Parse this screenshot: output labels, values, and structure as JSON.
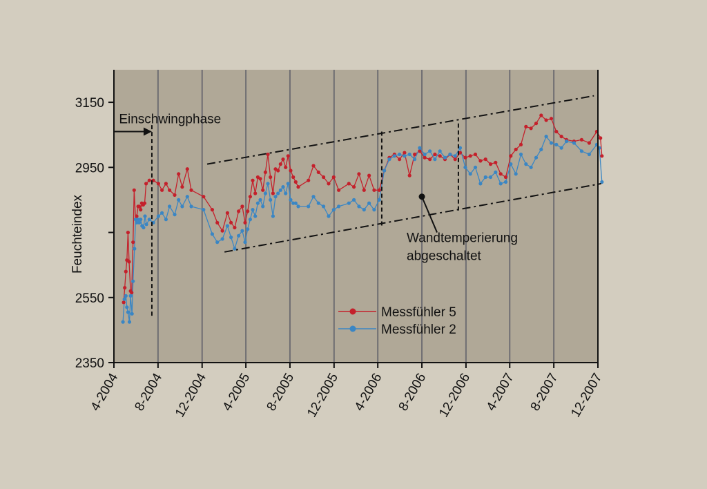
{
  "colors": {
    "background": "#d3cdbf",
    "plot_background": "#b0a897",
    "gridline": "#6f6e72",
    "series_red": "#c4202b",
    "series_blue": "#3a86c4"
  },
  "chart_data": {
    "type": "line",
    "title": "",
    "xlabel": "",
    "ylabel": "Feuchteindex",
    "x_type": "date",
    "xlim": [
      "2004-04-01",
      "2007-12-01"
    ],
    "ylim": [
      2350,
      3250
    ],
    "yticks": [
      2350,
      2550,
      2750,
      2950,
      3150
    ],
    "ytick_labels": [
      "2350",
      "2550",
      "",
      "2950",
      "3150"
    ],
    "xticks": [
      "2004-04-01",
      "2004-08-01",
      "2004-12-01",
      "2005-04-01",
      "2005-08-01",
      "2005-12-01",
      "2006-04-01",
      "2006-08-01",
      "2006-12-01",
      "2007-04-01",
      "2007-08-01",
      "2007-12-01"
    ],
    "xtick_labels": [
      "4-2004",
      "8-2004",
      "12-2004",
      "4-2005",
      "8-2005",
      "12-2005",
      "4-2006",
      "8-2006",
      "12-2006",
      "4-2007",
      "8-2007",
      "12-2007"
    ],
    "grid": "vertical",
    "legend_position": "bottom-center",
    "series": [
      {
        "name": "Messfühler 5",
        "color": "#c4202b",
        "points": [
          [
            "2004-04-28",
            2535
          ],
          [
            "2004-05-01",
            2580
          ],
          [
            "2004-05-04",
            2630
          ],
          [
            "2004-05-07",
            2665
          ],
          [
            "2004-05-10",
            2750
          ],
          [
            "2004-05-13",
            2660
          ],
          [
            "2004-05-17",
            2570
          ],
          [
            "2004-05-20",
            2565
          ],
          [
            "2004-05-24",
            2720
          ],
          [
            "2004-05-27",
            2880
          ],
          [
            "2004-05-31",
            2790
          ],
          [
            "2004-06-03",
            2800
          ],
          [
            "2004-06-07",
            2830
          ],
          [
            "2004-06-10",
            2830
          ],
          [
            "2004-06-14",
            2820
          ],
          [
            "2004-06-17",
            2840
          ],
          [
            "2004-06-21",
            2835
          ],
          [
            "2004-06-25",
            2840
          ],
          [
            "2004-06-29",
            2900
          ],
          [
            "2004-07-08",
            2910
          ],
          [
            "2004-07-19",
            2910
          ],
          [
            "2004-08-02",
            2900
          ],
          [
            "2004-08-12",
            2880
          ],
          [
            "2004-08-23",
            2900
          ],
          [
            "2004-09-02",
            2880
          ],
          [
            "2004-09-16",
            2865
          ],
          [
            "2004-09-27",
            2930
          ],
          [
            "2004-10-07",
            2890
          ],
          [
            "2004-10-21",
            2945
          ],
          [
            "2004-11-01",
            2880
          ],
          [
            "2004-12-05",
            2860
          ],
          [
            "2004-12-29",
            2820
          ],
          [
            "2005-01-12",
            2780
          ],
          [
            "2005-01-26",
            2755
          ],
          [
            "2005-02-09",
            2810
          ],
          [
            "2005-02-19",
            2780
          ],
          [
            "2005-03-01",
            2765
          ],
          [
            "2005-03-12",
            2815
          ],
          [
            "2005-03-22",
            2830
          ],
          [
            "2005-03-30",
            2780
          ],
          [
            "2005-04-06",
            2815
          ],
          [
            "2005-04-13",
            2860
          ],
          [
            "2005-04-20",
            2910
          ],
          [
            "2005-04-27",
            2870
          ],
          [
            "2005-05-04",
            2920
          ],
          [
            "2005-05-11",
            2915
          ],
          [
            "2005-05-18",
            2880
          ],
          [
            "2005-05-25",
            2935
          ],
          [
            "2005-06-01",
            2990
          ],
          [
            "2005-06-08",
            2920
          ],
          [
            "2005-06-15",
            2870
          ],
          [
            "2005-06-22",
            2945
          ],
          [
            "2005-06-29",
            2940
          ],
          [
            "2005-07-06",
            2960
          ],
          [
            "2005-07-13",
            2975
          ],
          [
            "2005-07-20",
            2950
          ],
          [
            "2005-07-27",
            2985
          ],
          [
            "2005-08-03",
            2940
          ],
          [
            "2005-08-10",
            2920
          ],
          [
            "2005-08-17",
            2905
          ],
          [
            "2005-08-24",
            2890
          ],
          [
            "2005-09-21",
            2910
          ],
          [
            "2005-10-05",
            2955
          ],
          [
            "2005-10-19",
            2935
          ],
          [
            "2005-11-02",
            2920
          ],
          [
            "2005-11-16",
            2900
          ],
          [
            "2005-11-30",
            2920
          ],
          [
            "2005-12-14",
            2880
          ],
          [
            "2006-01-11",
            2900
          ],
          [
            "2006-01-25",
            2890
          ],
          [
            "2006-02-08",
            2930
          ],
          [
            "2006-02-22",
            2880
          ],
          [
            "2006-03-08",
            2925
          ],
          [
            "2006-03-22",
            2880
          ],
          [
            "2006-04-05",
            2880
          ],
          [
            "2006-04-19",
            2940
          ],
          [
            "2006-05-03",
            2980
          ],
          [
            "2006-05-17",
            2990
          ],
          [
            "2006-05-31",
            2975
          ],
          [
            "2006-06-14",
            2995
          ],
          [
            "2006-06-28",
            2925
          ],
          [
            "2006-07-12",
            2990
          ],
          [
            "2006-07-26",
            3000
          ],
          [
            "2006-08-09",
            2980
          ],
          [
            "2006-08-23",
            2975
          ],
          [
            "2006-09-06",
            2990
          ],
          [
            "2006-09-20",
            2985
          ],
          [
            "2006-10-04",
            2975
          ],
          [
            "2006-10-18",
            2990
          ],
          [
            "2006-11-01",
            2975
          ],
          [
            "2006-11-15",
            2995
          ],
          [
            "2006-11-29",
            2980
          ],
          [
            "2006-12-13",
            2985
          ],
          [
            "2006-12-27",
            2990
          ],
          [
            "2007-01-10",
            2970
          ],
          [
            "2007-01-24",
            2975
          ],
          [
            "2007-02-07",
            2960
          ],
          [
            "2007-02-21",
            2965
          ],
          [
            "2007-03-07",
            2930
          ],
          [
            "2007-03-21",
            2920
          ],
          [
            "2007-04-04",
            2985
          ],
          [
            "2007-04-18",
            3005
          ],
          [
            "2007-05-02",
            3020
          ],
          [
            "2007-05-16",
            3075
          ],
          [
            "2007-05-30",
            3070
          ],
          [
            "2007-06-13",
            3085
          ],
          [
            "2007-06-27",
            3110
          ],
          [
            "2007-07-11",
            3095
          ],
          [
            "2007-07-25",
            3100
          ],
          [
            "2007-08-08",
            3060
          ],
          [
            "2007-08-22",
            3045
          ],
          [
            "2007-09-05",
            3035
          ],
          [
            "2007-09-26",
            3030
          ],
          [
            "2007-10-17",
            3035
          ],
          [
            "2007-11-07",
            3025
          ],
          [
            "2007-11-28",
            3060
          ],
          [
            "2007-12-08",
            3040
          ],
          [
            "2007-12-12",
            2985
          ]
        ]
      },
      {
        "name": "Messfühler 2",
        "color": "#3a86c4",
        "points": [
          [
            "2004-04-26",
            2475
          ],
          [
            "2004-04-30",
            2545
          ],
          [
            "2004-05-04",
            2555
          ],
          [
            "2004-05-07",
            2520
          ],
          [
            "2004-05-10",
            2505
          ],
          [
            "2004-05-14",
            2475
          ],
          [
            "2004-05-17",
            2555
          ],
          [
            "2004-05-21",
            2500
          ],
          [
            "2004-05-24",
            2600
          ],
          [
            "2004-05-28",
            2700
          ],
          [
            "2004-05-31",
            2790
          ],
          [
            "2004-06-03",
            2780
          ],
          [
            "2004-06-07",
            2790
          ],
          [
            "2004-06-10",
            2780
          ],
          [
            "2004-06-14",
            2790
          ],
          [
            "2004-06-18",
            2770
          ],
          [
            "2004-06-22",
            2765
          ],
          [
            "2004-06-26",
            2800
          ],
          [
            "2004-06-30",
            2775
          ],
          [
            "2004-07-08",
            2790
          ],
          [
            "2004-07-19",
            2780
          ],
          [
            "2004-08-02",
            2800
          ],
          [
            "2004-08-12",
            2810
          ],
          [
            "2004-08-23",
            2790
          ],
          [
            "2004-09-02",
            2830
          ],
          [
            "2004-09-16",
            2805
          ],
          [
            "2004-09-27",
            2850
          ],
          [
            "2004-10-07",
            2830
          ],
          [
            "2004-10-21",
            2860
          ],
          [
            "2004-11-01",
            2830
          ],
          [
            "2004-12-05",
            2820
          ],
          [
            "2004-12-29",
            2745
          ],
          [
            "2005-01-12",
            2720
          ],
          [
            "2005-01-26",
            2730
          ],
          [
            "2005-02-09",
            2770
          ],
          [
            "2005-02-19",
            2735
          ],
          [
            "2005-03-01",
            2700
          ],
          [
            "2005-03-12",
            2740
          ],
          [
            "2005-03-22",
            2755
          ],
          [
            "2005-03-30",
            2720
          ],
          [
            "2005-04-06",
            2760
          ],
          [
            "2005-04-13",
            2790
          ],
          [
            "2005-04-20",
            2820
          ],
          [
            "2005-04-27",
            2800
          ],
          [
            "2005-05-04",
            2840
          ],
          [
            "2005-05-11",
            2850
          ],
          [
            "2005-05-18",
            2830
          ],
          [
            "2005-05-25",
            2870
          ],
          [
            "2005-06-01",
            2900
          ],
          [
            "2005-06-08",
            2850
          ],
          [
            "2005-06-15",
            2800
          ],
          [
            "2005-06-22",
            2860
          ],
          [
            "2005-06-29",
            2870
          ],
          [
            "2005-07-06",
            2880
          ],
          [
            "2005-07-13",
            2890
          ],
          [
            "2005-07-20",
            2870
          ],
          [
            "2005-07-27",
            2900
          ],
          [
            "2005-08-03",
            2850
          ],
          [
            "2005-08-10",
            2840
          ],
          [
            "2005-08-17",
            2840
          ],
          [
            "2005-08-24",
            2830
          ],
          [
            "2005-09-21",
            2830
          ],
          [
            "2005-10-05",
            2860
          ],
          [
            "2005-10-19",
            2840
          ],
          [
            "2005-11-02",
            2830
          ],
          [
            "2005-11-16",
            2800
          ],
          [
            "2005-11-30",
            2820
          ],
          [
            "2005-12-14",
            2830
          ],
          [
            "2006-01-11",
            2840
          ],
          [
            "2006-01-25",
            2850
          ],
          [
            "2006-02-08",
            2830
          ],
          [
            "2006-02-22",
            2820
          ],
          [
            "2006-03-08",
            2840
          ],
          [
            "2006-03-22",
            2820
          ],
          [
            "2006-04-05",
            2850
          ],
          [
            "2006-04-19",
            2940
          ],
          [
            "2006-05-03",
            2975
          ],
          [
            "2006-05-17",
            2985
          ],
          [
            "2006-05-31",
            2990
          ],
          [
            "2006-06-14",
            2985
          ],
          [
            "2006-06-28",
            2990
          ],
          [
            "2006-07-12",
            2975
          ],
          [
            "2006-07-26",
            3010
          ],
          [
            "2006-08-09",
            2990
          ],
          [
            "2006-08-23",
            3000
          ],
          [
            "2006-09-06",
            2975
          ],
          [
            "2006-09-20",
            3000
          ],
          [
            "2006-10-04",
            2980
          ],
          [
            "2006-10-18",
            2990
          ],
          [
            "2006-11-01",
            2985
          ],
          [
            "2006-11-15",
            3010
          ],
          [
            "2006-11-29",
            2950
          ],
          [
            "2006-12-13",
            2930
          ],
          [
            "2006-12-27",
            2950
          ],
          [
            "2007-01-10",
            2900
          ],
          [
            "2007-01-24",
            2920
          ],
          [
            "2007-02-07",
            2920
          ],
          [
            "2007-02-21",
            2935
          ],
          [
            "2007-03-07",
            2900
          ],
          [
            "2007-03-21",
            2905
          ],
          [
            "2007-04-04",
            2960
          ],
          [
            "2007-04-18",
            2930
          ],
          [
            "2007-05-02",
            2990
          ],
          [
            "2007-05-16",
            2960
          ],
          [
            "2007-05-30",
            2950
          ],
          [
            "2007-06-13",
            2980
          ],
          [
            "2007-06-27",
            3005
          ],
          [
            "2007-07-11",
            3045
          ],
          [
            "2007-07-25",
            3025
          ],
          [
            "2007-08-08",
            3020
          ],
          [
            "2007-08-22",
            3010
          ],
          [
            "2007-09-05",
            3030
          ],
          [
            "2007-09-26",
            3025
          ],
          [
            "2007-10-17",
            3000
          ],
          [
            "2007-11-07",
            2990
          ],
          [
            "2007-11-28",
            3020
          ],
          [
            "2007-12-05",
            3010
          ],
          [
            "2007-12-12",
            2905
          ]
        ]
      }
    ],
    "reference_lines": [
      {
        "kind": "dash-dot",
        "from": [
          "2004-12-15",
          2960
        ],
        "to": [
          "2007-11-20",
          3170
        ]
      },
      {
        "kind": "dash-dot",
        "from": [
          "2005-02-01",
          2690
        ],
        "to": [
          "2007-12-10",
          2900
        ]
      },
      {
        "kind": "dashed",
        "from": [
          "2004-07-15",
          3080
        ],
        "to": [
          "2004-07-15",
          2490
        ]
      },
      {
        "kind": "dashed",
        "from": [
          "2006-04-12",
          3060
        ],
        "to": [
          "2006-04-12",
          2770
        ]
      },
      {
        "kind": "dashed",
        "from": [
          "2006-11-10",
          3085
        ],
        "to": [
          "2006-11-10",
          2815
        ]
      }
    ],
    "annotations": [
      {
        "id": "einschwing",
        "text": "Einschwingphase",
        "label_at": [
          "2004-04-15",
          3100
        ],
        "arrow_from": [
          "2004-04-01",
          3060
        ],
        "arrow_to": [
          "2004-07-15",
          3060
        ]
      },
      {
        "id": "wandtemp",
        "lines": [
          "Wandtemperierung",
          "abgeschaltet"
        ],
        "label_at": [
          "2006-06-20",
          2720
        ],
        "point_at": [
          "2006-08-01",
          2860
        ],
        "line_end": [
          "2006-09-12",
          2750
        ]
      }
    ]
  }
}
